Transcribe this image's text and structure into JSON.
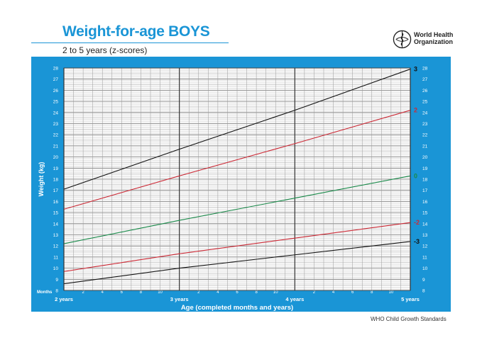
{
  "header": {
    "title": "Weight-for-age BOYS",
    "subtitle": "2 to 5 years (z-scores)"
  },
  "logo": {
    "icon": "who-emblem-icon",
    "line1": "World Health",
    "line2": "Organization"
  },
  "footer": {
    "text": "WHO Child Growth Standards"
  },
  "colors": {
    "panel": "#1a95d6",
    "black": "#111111",
    "red": "#cc2a36",
    "green": "#1a8a4a"
  },
  "chart_data": {
    "type": "line",
    "xlabel": "Age (completed months and years)",
    "ylabel": "Weight (kg)",
    "xlim": [
      24,
      60
    ],
    "ylim": [
      8,
      28
    ],
    "grid": true,
    "y_ticks": [
      8,
      9,
      10,
      11,
      12,
      13,
      14,
      15,
      16,
      17,
      18,
      19,
      20,
      21,
      22,
      23,
      24,
      25,
      26,
      27,
      28
    ],
    "months_label": "Months",
    "month_ticks": [
      {
        "x": 26,
        "label": "2"
      },
      {
        "x": 28,
        "label": "4"
      },
      {
        "x": 30,
        "label": "6"
      },
      {
        "x": 32,
        "label": "8"
      },
      {
        "x": 34,
        "label": "10"
      },
      {
        "x": 38,
        "label": "2"
      },
      {
        "x": 40,
        "label": "4"
      },
      {
        "x": 42,
        "label": "6"
      },
      {
        "x": 44,
        "label": "8"
      },
      {
        "x": 46,
        "label": "10"
      },
      {
        "x": 50,
        "label": "2"
      },
      {
        "x": 52,
        "label": "4"
      },
      {
        "x": 54,
        "label": "6"
      },
      {
        "x": 56,
        "label": "8"
      },
      {
        "x": 58,
        "label": "10"
      }
    ],
    "year_ticks": [
      {
        "x": 24,
        "label": "2 years"
      },
      {
        "x": 36,
        "label": "3 years"
      },
      {
        "x": 48,
        "label": "4 years"
      },
      {
        "x": 60,
        "label": "5 years"
      }
    ],
    "series": [
      {
        "name": "3",
        "color": "#111111",
        "x": [
          24,
          36,
          48,
          60
        ],
        "y": [
          17.1,
          20.7,
          24.2,
          27.9
        ]
      },
      {
        "name": "2",
        "color": "#cc2a36",
        "x": [
          24,
          36,
          48,
          60
        ],
        "y": [
          15.3,
          18.3,
          21.2,
          24.2
        ]
      },
      {
        "name": "0",
        "color": "#1a8a4a",
        "x": [
          24,
          36,
          48,
          60
        ],
        "y": [
          12.2,
          14.3,
          16.3,
          18.3
        ]
      },
      {
        "name": "-2",
        "color": "#cc2a36",
        "x": [
          24,
          36,
          48,
          60
        ],
        "y": [
          9.7,
          11.3,
          12.7,
          14.1
        ]
      },
      {
        "name": "-3",
        "color": "#111111",
        "x": [
          24,
          36,
          48,
          60
        ],
        "y": [
          8.6,
          10.0,
          11.2,
          12.4
        ]
      }
    ]
  }
}
